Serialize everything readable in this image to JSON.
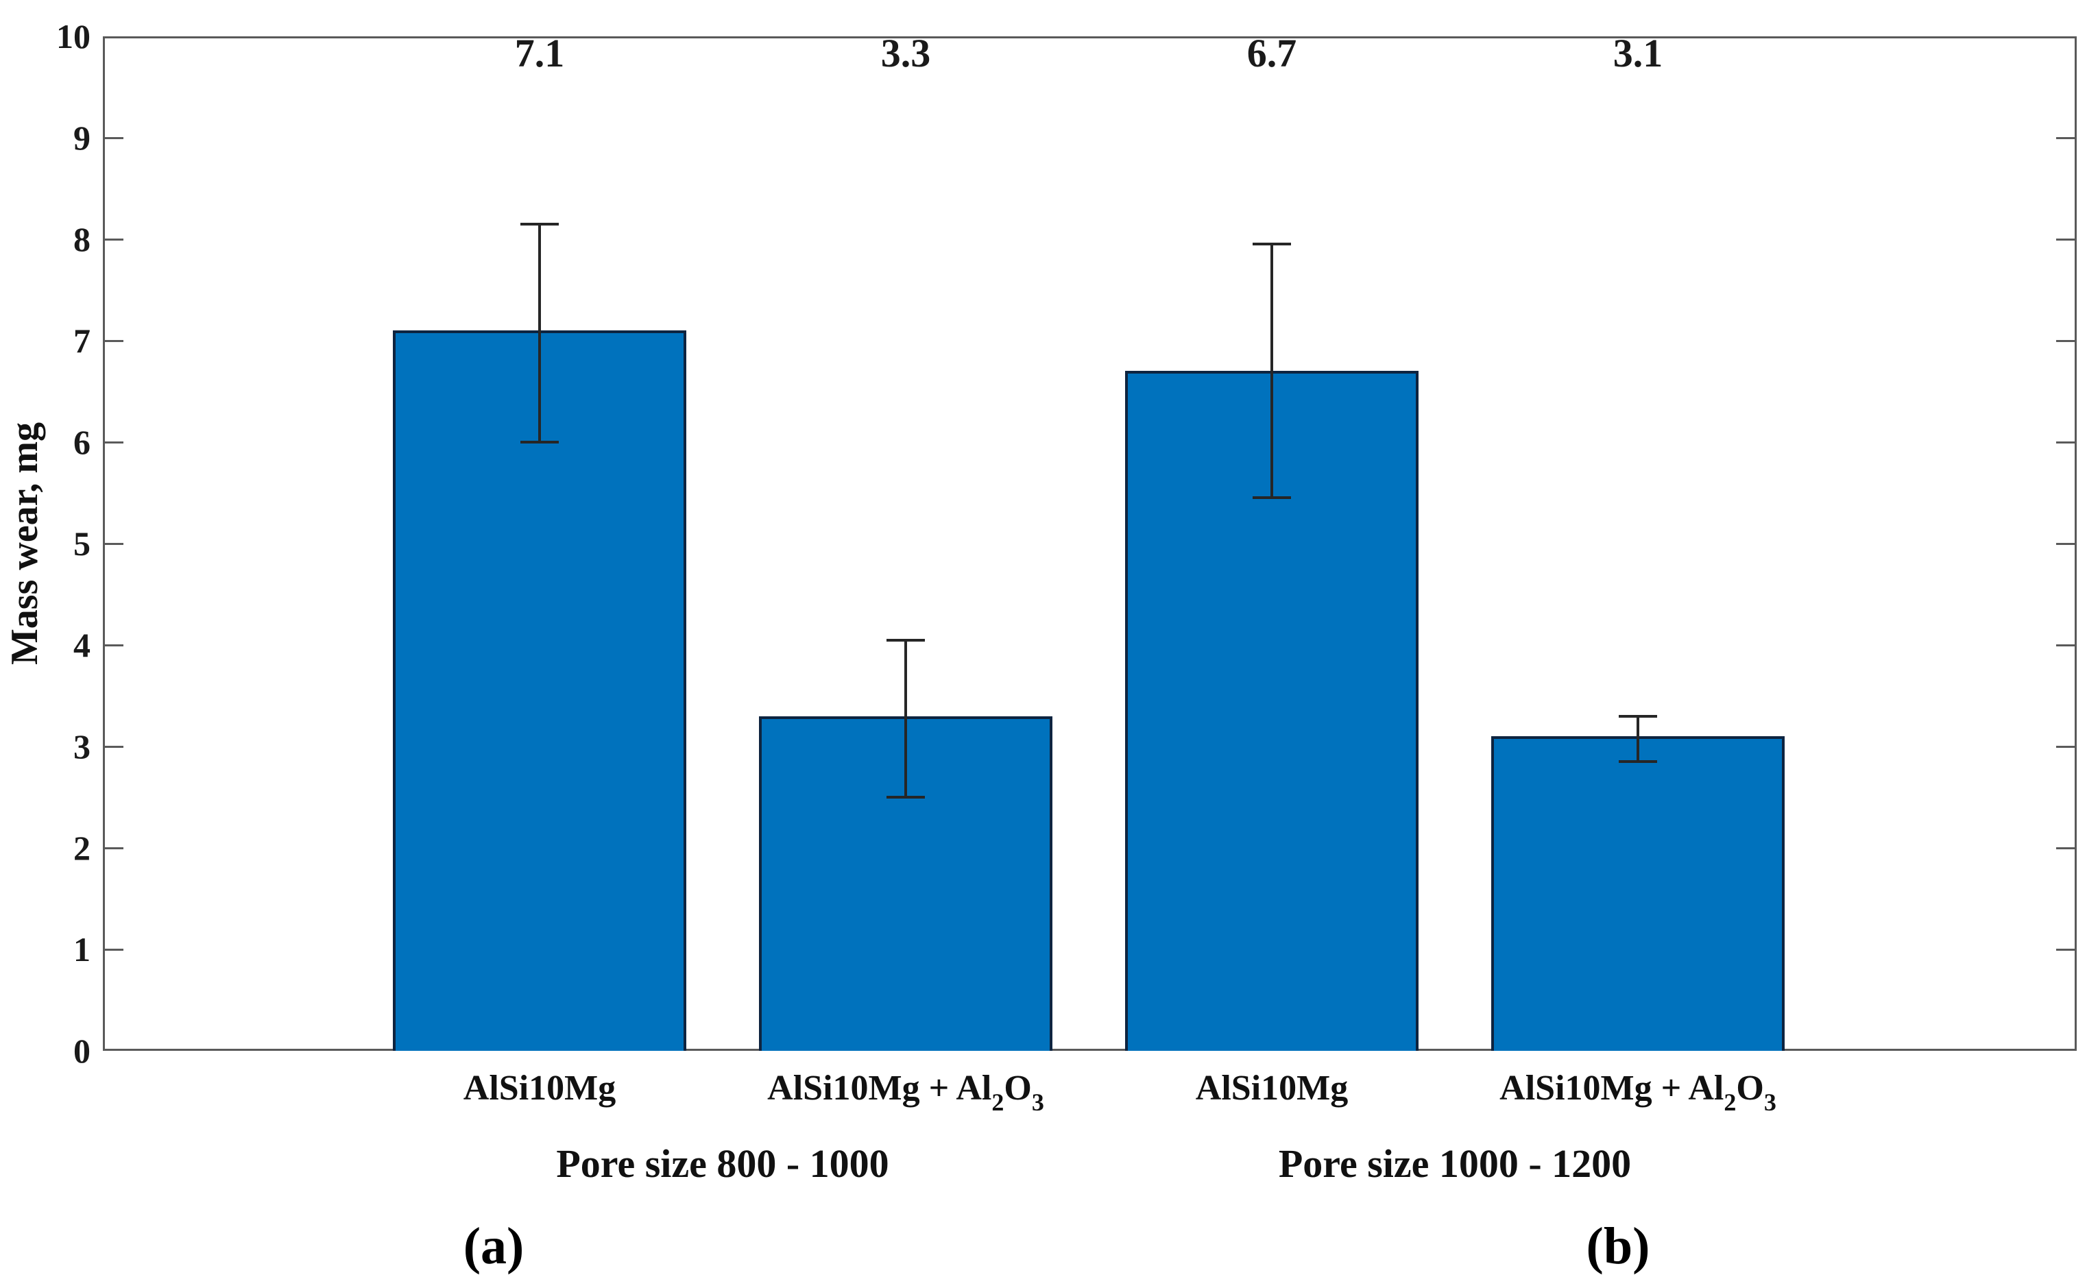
{
  "figure": {
    "background": "#ffffff",
    "subfigure_labels": [
      "(a)",
      "(b)"
    ]
  },
  "chart_data": {
    "type": "bar",
    "title": "",
    "xlabel": "",
    "ylabel": "Mass wear, mg",
    "ylim": [
      0,
      10
    ],
    "ytick_step": 1,
    "yticks": [
      "0",
      "1",
      "2",
      "3",
      "4",
      "5",
      "6",
      "7",
      "8",
      "9",
      "10"
    ],
    "grid": false,
    "legend": null,
    "bar_color": "#0072BD",
    "bar_edge_color": "#0e2440",
    "axis_color": "#5a5a5a",
    "error_bar_color": "#262626",
    "categories": [
      "AlSi10Mg",
      "AlSi10Mg + Al2O3",
      "AlSi10Mg",
      "AlSi10Mg + Al2O3"
    ],
    "values": [
      7.1,
      3.3,
      6.7,
      3.1
    ],
    "bars": [
      {
        "group": "Pore size 800 - 1000",
        "category": "AlSi10Mg",
        "category_parts": [
          {
            "t": "AlSi10Mg"
          }
        ],
        "value": 7.1,
        "label": "7.1",
        "err_low": 6.0,
        "err_high": 8.15
      },
      {
        "group": "Pore size 800 - 1000",
        "category": "AlSi10Mg + Al2O3",
        "category_parts": [
          {
            "t": "AlSi10Mg + Al"
          },
          {
            "t": "2",
            "sub": true
          },
          {
            "t": "O"
          },
          {
            "t": "3",
            "sub": true
          }
        ],
        "value": 3.3,
        "label": "3.3",
        "err_low": 2.5,
        "err_high": 4.05
      },
      {
        "group": "Pore size 1000 - 1200",
        "category": "AlSi10Mg",
        "category_parts": [
          {
            "t": "AlSi10Mg"
          }
        ],
        "value": 6.7,
        "label": "6.7",
        "err_low": 5.45,
        "err_high": 7.95
      },
      {
        "group": "Pore size 1000 - 1200",
        "category": "AlSi10Mg + Al2O3",
        "category_parts": [
          {
            "t": "AlSi10Mg + Al"
          },
          {
            "t": "2",
            "sub": true
          },
          {
            "t": "O"
          },
          {
            "t": "3",
            "sub": true
          }
        ],
        "value": 3.1,
        "label": "3.1",
        "err_low": 2.85,
        "err_high": 3.3
      }
    ],
    "groups": [
      {
        "label": "Pore size 800 - 1000",
        "bar_indexes": [
          0,
          1
        ]
      },
      {
        "label": "Pore size 1000 - 1200",
        "bar_indexes": [
          2,
          3
        ]
      }
    ]
  }
}
